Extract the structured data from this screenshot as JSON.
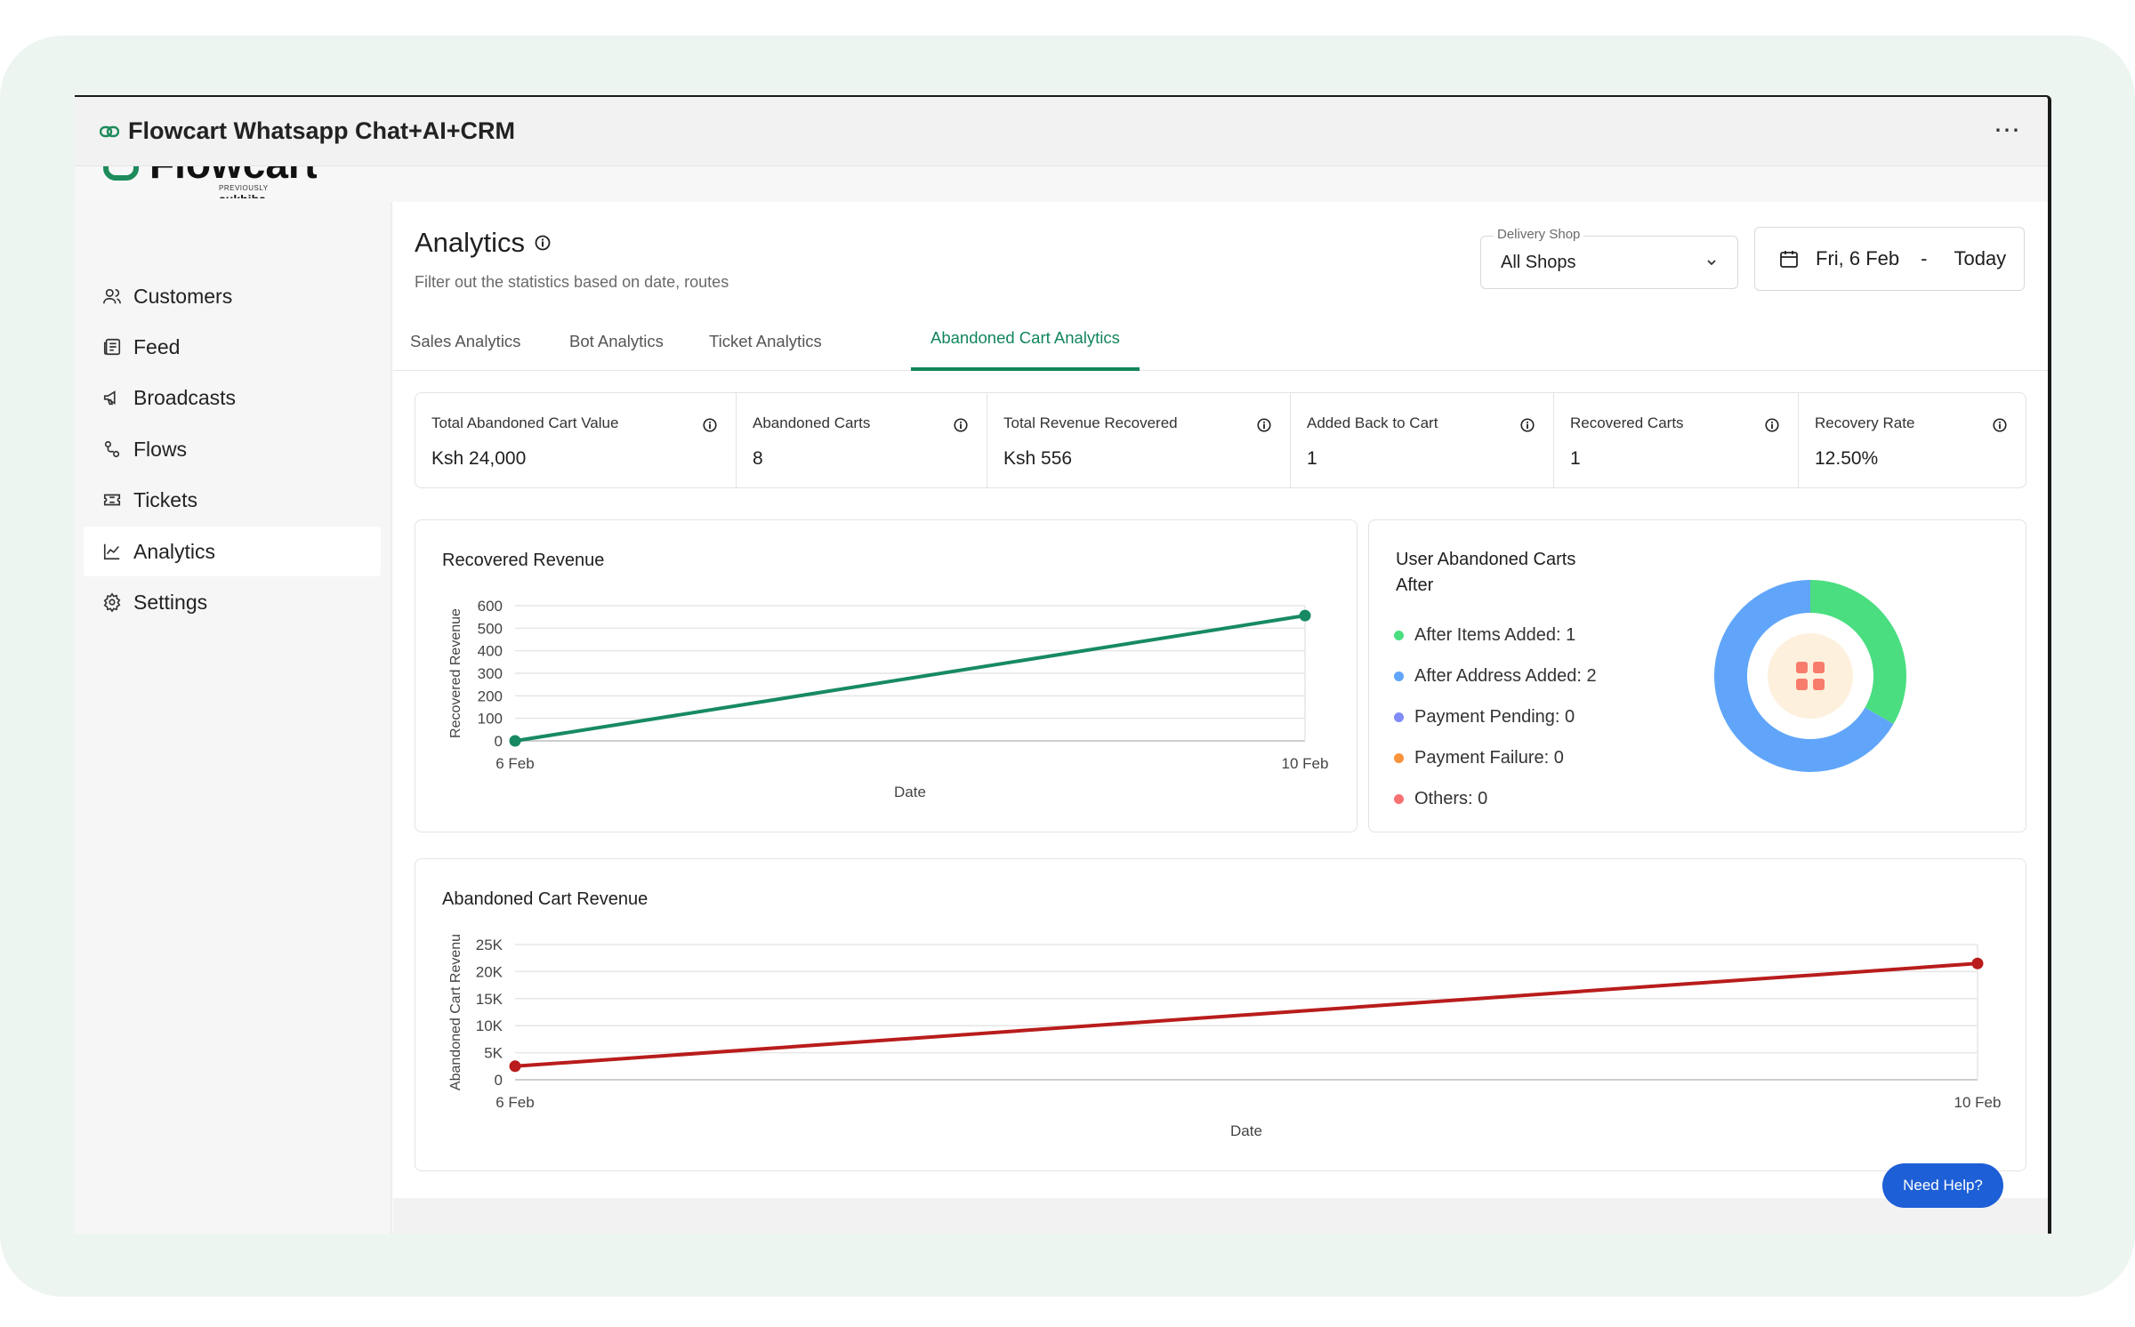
{
  "window": {
    "title": "Flowcart Whatsapp Chat+AI+CRM",
    "more_label": "⋯"
  },
  "brand": {
    "name": "Flowcart",
    "previously_label": "PREVIOUSLY",
    "previous_name": "sukhiba"
  },
  "sidebar": {
    "items": [
      {
        "label": "Customers",
        "icon": "users-icon"
      },
      {
        "label": "Feed",
        "icon": "feed-icon"
      },
      {
        "label": "Broadcasts",
        "icon": "megaphone-icon"
      },
      {
        "label": "Flows",
        "icon": "flows-icon"
      },
      {
        "label": "Tickets",
        "icon": "ticket-icon"
      },
      {
        "label": "Analytics",
        "icon": "analytics-icon",
        "active": true
      },
      {
        "label": "Settings",
        "icon": "gear-icon"
      }
    ]
  },
  "header": {
    "title": "Analytics",
    "subtitle": "Filter out the statistics based on date, routes"
  },
  "filters": {
    "shop_label": "Delivery Shop",
    "shop_value": "All Shops",
    "date_from": "Fri, 6 Feb",
    "date_separator": "-",
    "date_to": "Today"
  },
  "tabs": [
    {
      "label": "Sales Analytics"
    },
    {
      "label": "Bot Analytics"
    },
    {
      "label": "Ticket Analytics"
    },
    {
      "label": "Abandoned Cart Analytics",
      "active": true
    }
  ],
  "kpis": [
    {
      "label": "Total Abandoned Cart Value",
      "value": "Ksh 24,000"
    },
    {
      "label": "Abandoned Carts",
      "value": "8"
    },
    {
      "label": "Total Revenue Recovered",
      "value": "Ksh 556"
    },
    {
      "label": "Added Back to Cart",
      "value": "1"
    },
    {
      "label": "Recovered Carts",
      "value": "1"
    },
    {
      "label": "Recovery Rate",
      "value": "12.50%"
    }
  ],
  "donut": {
    "title_line1": "User Abandoned Carts",
    "title_line2": "After",
    "items": [
      {
        "label": "After Items Added: 1",
        "value": 1,
        "color": "#4ade80"
      },
      {
        "label": "After Address Added: 2",
        "value": 2,
        "color": "#60a5fa"
      },
      {
        "label": "Payment Pending: 0",
        "value": 0,
        "color": "#818cf8"
      },
      {
        "label": "Payment Failure: 0",
        "value": 0,
        "color": "#fb923c"
      },
      {
        "label": "Others: 0",
        "value": 0,
        "color": "#f87171"
      }
    ]
  },
  "chart_data": [
    {
      "type": "line",
      "title": "Recovered Revenue",
      "xlabel": "Date",
      "ylabel": "Recovered Revenue",
      "x": [
        "6 Feb",
        "10 Feb"
      ],
      "values": [
        0,
        556
      ],
      "ylim": [
        0,
        600
      ],
      "yticks": [
        "0",
        "100",
        "200",
        "300",
        "400",
        "500",
        "600"
      ],
      "grid": true,
      "color": "#178a63"
    },
    {
      "type": "line",
      "title": "Abandoned Cart Revenue",
      "xlabel": "Date",
      "ylabel": "Abandoned Cart Revenu",
      "x": [
        "6 Feb",
        "10 Feb"
      ],
      "values": [
        2500,
        21500
      ],
      "ylim": [
        0,
        25000
      ],
      "yticks": [
        "0",
        "5K",
        "10K",
        "15K",
        "20K",
        "25K"
      ],
      "grid": true,
      "color": "#b91c1c"
    }
  ],
  "help": {
    "label": "Need Help?"
  }
}
